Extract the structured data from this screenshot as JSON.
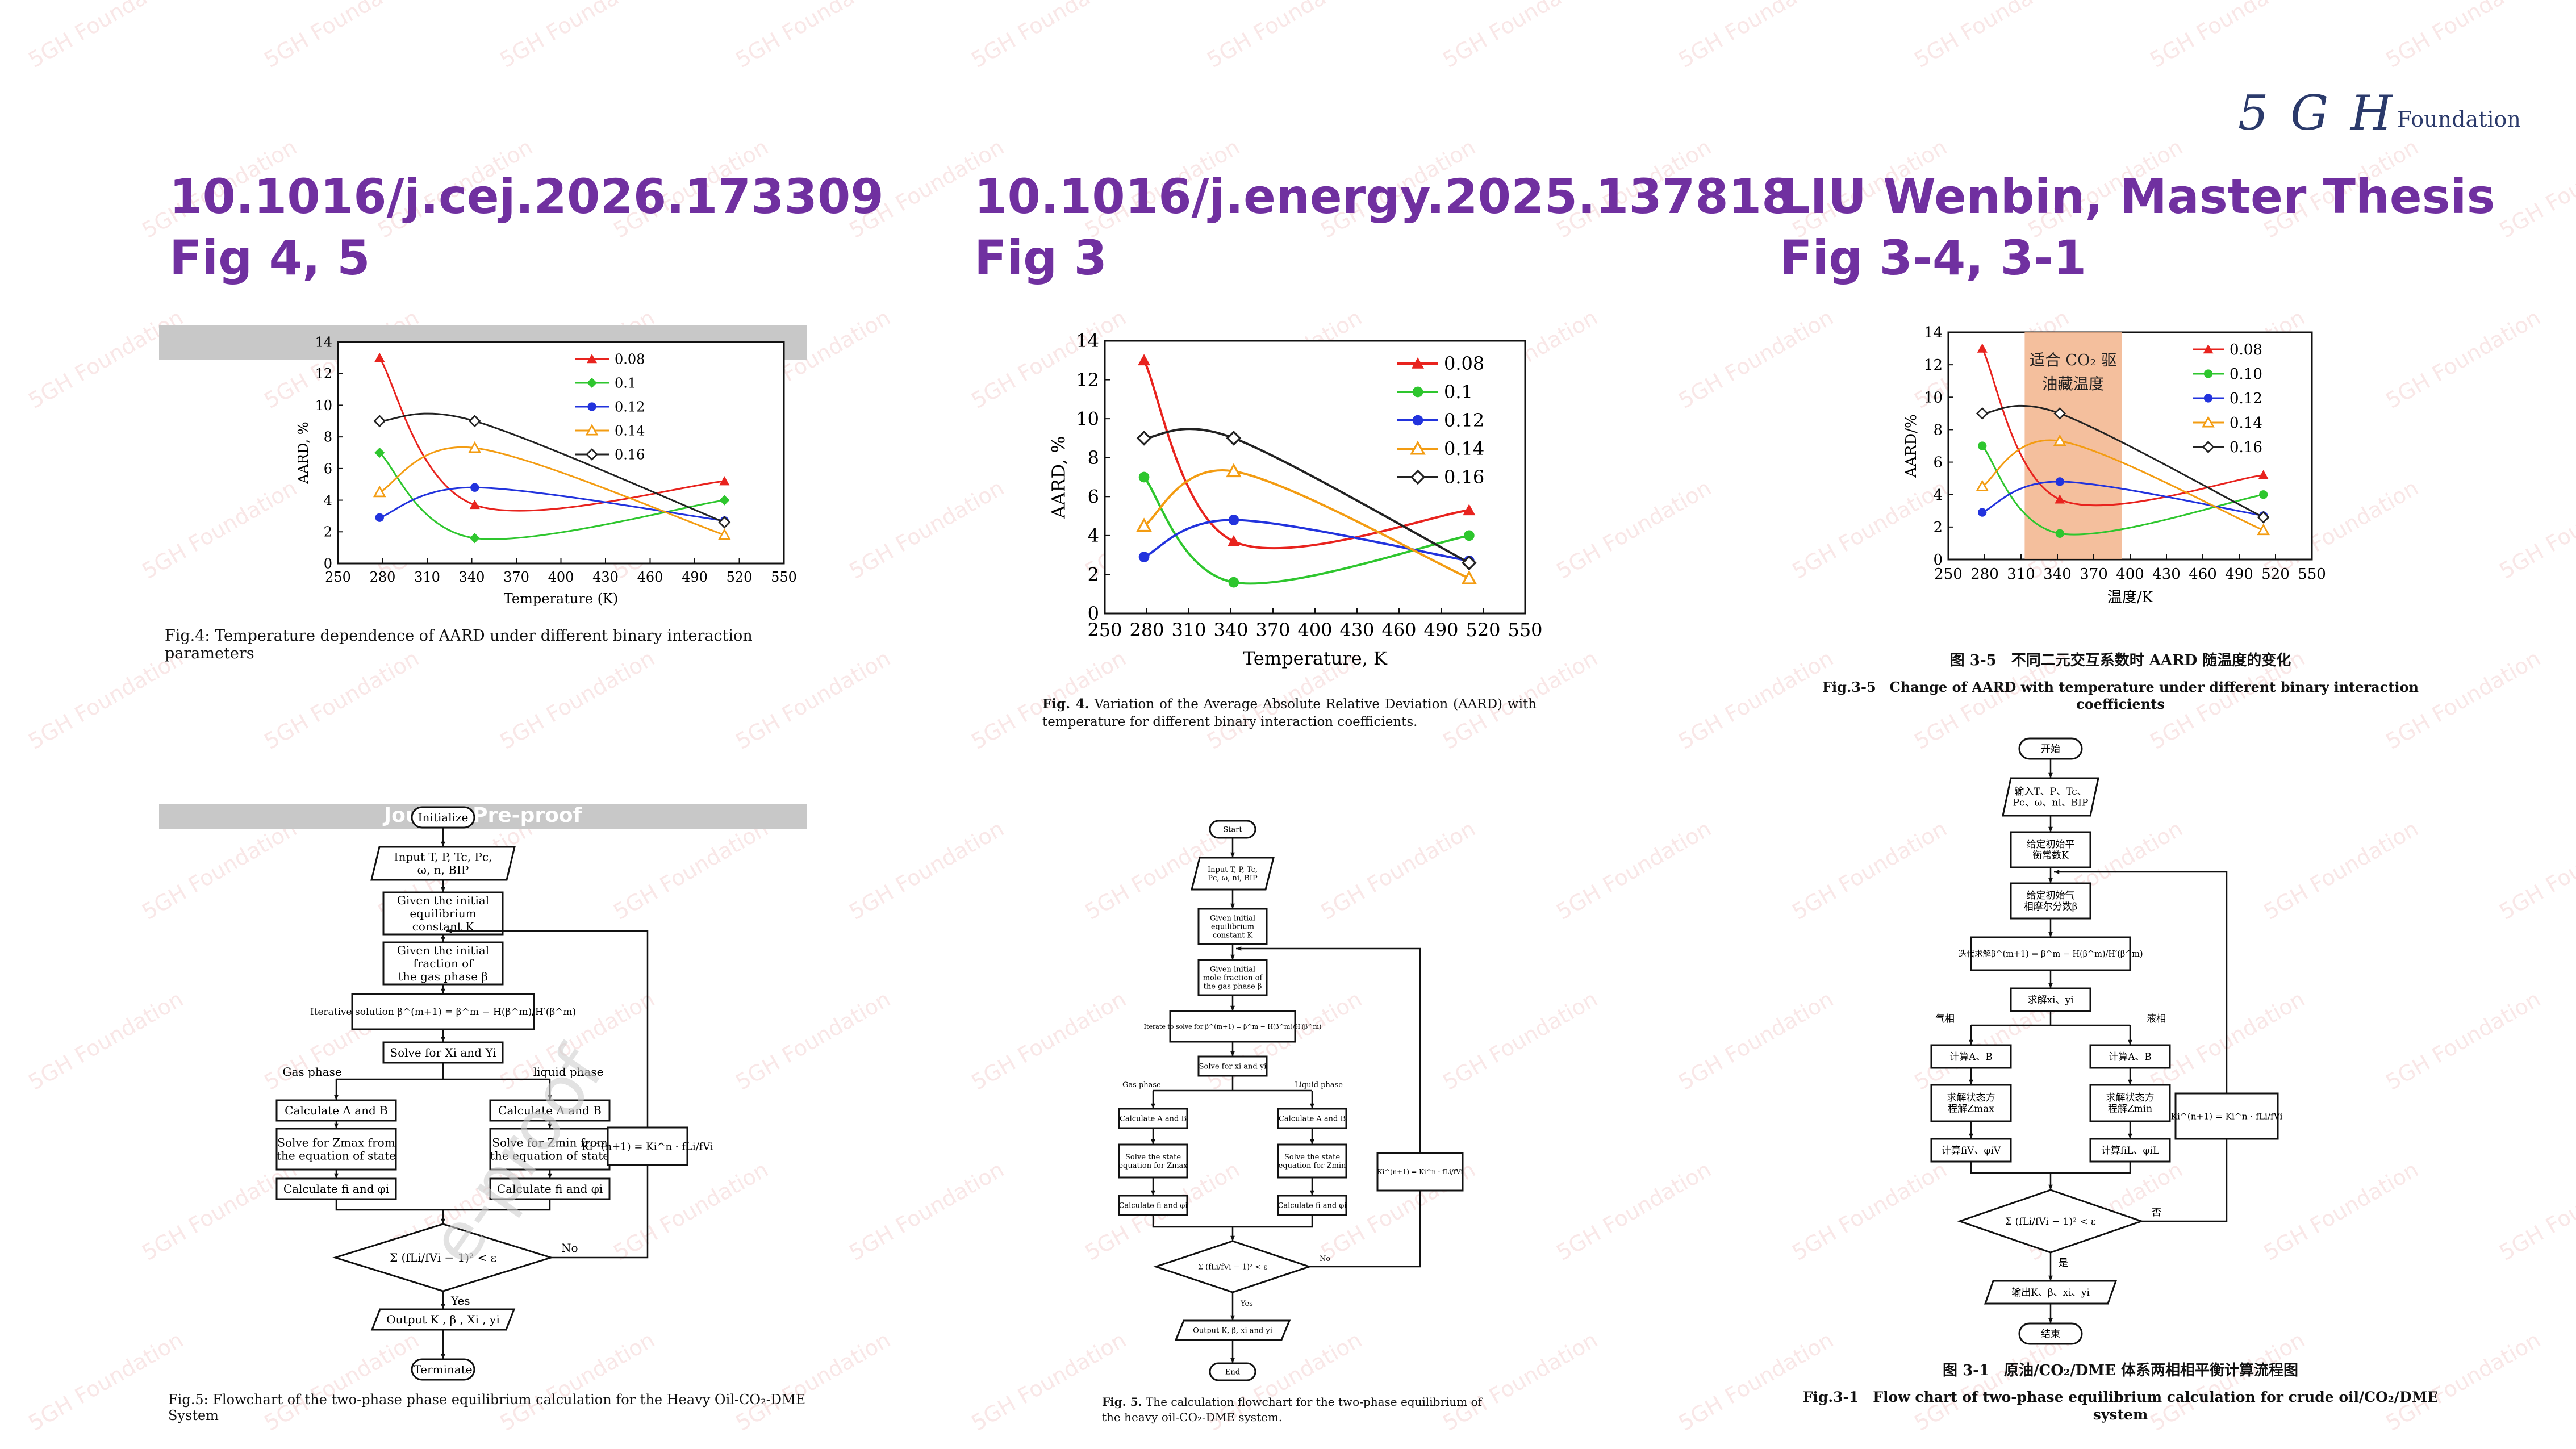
{
  "logo": {
    "mark": "5 G H",
    "text": "Foundation"
  },
  "watermark_text": "5GH Foundation",
  "columns": [
    {
      "doi": "10.1016/j.cej.2026.173309",
      "figs": "Fig 4, 5"
    },
    {
      "doi": "10.1016/j.energy.2025.137818",
      "figs": "Fig 3"
    },
    {
      "doi": "LIU Wenbin, Master Thesis",
      "figs": "Fig 3-4, 3-1"
    }
  ],
  "chart_common": {
    "x_ticks": [
      250,
      280,
      310,
      340,
      370,
      400,
      430,
      460,
      490,
      520,
      550
    ],
    "y_ticks": [
      0,
      2,
      4,
      6,
      8,
      10,
      12,
      14
    ],
    "xlim": [
      250,
      550
    ],
    "ylim": [
      0,
      14
    ]
  },
  "chart_data": [
    {
      "type": "line",
      "xlabel": "Temperature (K)",
      "ylabel": "AARD, %",
      "x": [
        278,
        342,
        510
      ],
      "series": [
        {
          "name": "0.08",
          "values": [
            13.0,
            3.7,
            5.2
          ],
          "color": "#e8231e",
          "marker": "triangle"
        },
        {
          "name": "0.1",
          "values": [
            7.0,
            1.6,
            4.0
          ],
          "color": "#2ec62e",
          "marker": "diamond"
        },
        {
          "name": "0.12",
          "values": [
            2.9,
            4.8,
            2.7
          ],
          "color": "#2233dd",
          "marker": "circle"
        },
        {
          "name": "0.14",
          "values": [
            4.5,
            7.3,
            1.8
          ],
          "color": "#f39c12",
          "marker": "open-triangle"
        },
        {
          "name": "0.16",
          "values": [
            9.0,
            9.0,
            2.6
          ],
          "color": "#222222",
          "marker": "open-diamond"
        }
      ],
      "caption": "Fig.4: Temperature dependence of AARD under different binary interaction parameters"
    },
    {
      "type": "line",
      "xlabel": "Temperature, K",
      "ylabel": "AARD, %",
      "x": [
        278,
        342,
        510
      ],
      "series": [
        {
          "name": "0.08",
          "values": [
            13.0,
            3.7,
            5.3
          ],
          "color": "#e8231e",
          "marker": "triangle"
        },
        {
          "name": "0.1",
          "values": [
            7.0,
            1.6,
            4.0
          ],
          "color": "#2ec62e",
          "marker": "circle"
        },
        {
          "name": "0.12",
          "values": [
            2.9,
            4.8,
            2.7
          ],
          "color": "#2233dd",
          "marker": "circle"
        },
        {
          "name": "0.14",
          "values": [
            4.5,
            7.3,
            1.8
          ],
          "color": "#f39c12",
          "marker": "open-triangle"
        },
        {
          "name": "0.16",
          "values": [
            9.0,
            9.0,
            2.6
          ],
          "color": "#222222",
          "marker": "open-diamond"
        }
      ],
      "caption_bold": "Fig. 4.",
      "caption": "Variation of the Average Absolute Relative Deviation (AARD) with temperature for different binary interaction coefficients."
    },
    {
      "type": "line",
      "xlabel": "温度/K",
      "ylabel": "AARD/%",
      "x": [
        278,
        342,
        510
      ],
      "series": [
        {
          "name": "0.08",
          "values": [
            13.0,
            3.7,
            5.2
          ],
          "color": "#e8231e",
          "marker": "triangle"
        },
        {
          "name": "0.10",
          "values": [
            7.0,
            1.6,
            4.0
          ],
          "color": "#2ec62e",
          "marker": "circle"
        },
        {
          "name": "0.12",
          "values": [
            2.9,
            4.8,
            2.7
          ],
          "color": "#2233dd",
          "marker": "circle"
        },
        {
          "name": "0.14",
          "values": [
            4.5,
            7.3,
            1.8
          ],
          "color": "#f39c12",
          "marker": "open-triangle"
        },
        {
          "name": "0.16",
          "values": [
            9.0,
            9.0,
            2.6
          ],
          "color": "#222222",
          "marker": "open-diamond"
        }
      ],
      "band": {
        "x0": 313,
        "x1": 393,
        "label1": "适合 CO₂ 驱",
        "label2": "油藏温度",
        "color": "#f2b48c"
      },
      "caption_cn": "图 3-5　不同二元交互系数时 AARD 随温度的变化",
      "caption": "Fig.3-5　Change of AARD with temperature under different binary interaction coefficients"
    }
  ],
  "journal_banner": "Journal Pre-proof",
  "proof_watermark": "e-proof",
  "flow1": {
    "initialize": "Initialize",
    "input1": "Input T, P, Tc, Pc,",
    "input2": "ω, n, BIP",
    "given_k1": "Given the initial",
    "given_k2": "equilibrium",
    "given_k3": "constant  K",
    "given_b1": "Given the initial",
    "given_b2": "fraction of",
    "given_b3": "the gas phase β",
    "iter": "Iterative solution β^(m+1) = β^m − H(β^m)/H′(β^m)",
    "solve_xy": "Solve for Xi and Yi",
    "gas_phase": "Gas phase",
    "liquid_phase": "liquid phase",
    "calc_ab": "Calculate A and B",
    "solve_z_max1": "Solve for Zmax from",
    "solve_z_min1": "Solve for Zmin from",
    "solve_z2": "the equation of state",
    "calc_f": "Calculate fi and φi",
    "k_update": "Ki^(n+1) = Ki^n · fLi/fVi",
    "decision": "Σ (fLi/fVi − 1)² < ε",
    "no": "No",
    "yes": "Yes",
    "output": "Output K , β , Xi , yi",
    "terminate": "Terminate",
    "caption": "Fig.5: Flowchart of the two-phase phase equilibrium calculation for the Heavy Oil-CO₂-DME System"
  },
  "flow2": {
    "start": "Start",
    "input1": "Input T, P, Tc,",
    "input2": "Pc, ω, ni, BIP",
    "given_k1": "Given initial",
    "given_k2": "equilibrium",
    "given_k3": "constant K",
    "given_b1": "Given initial",
    "given_b2": "mole fraction of",
    "given_b3": "the gas phase β",
    "iter": "Iterate to solve for β^(m+1) = β^m − H(β^m)/H′(β^m)",
    "solve_xy": "Solve for xi and yi",
    "gas_phase": "Gas phase",
    "liquid_phase": "Liquid phase",
    "calc_ab": "Calculate A and B",
    "solve_z1": "Solve the state",
    "solve_z2_max": "equation for Zmax",
    "solve_z2_min": "equation for Zmin",
    "calc_f": "Calculate fi and φi",
    "k_update": "Ki^(n+1) = Ki^n · fLi/fVi",
    "decision": "Σ (fLi/fVi − 1)² < ε",
    "no": "No",
    "yes": "Yes",
    "output": "Output K, β, xi and yi",
    "end": "End",
    "caption_bold": "Fig. 5.",
    "caption": "The calculation flowchart for the two-phase equilibrium of the heavy oil-CO₂-DME system."
  },
  "flow3": {
    "start": "开始",
    "input1": "输入T、P、Tc、",
    "input2": "Pc、ω、ni、BIP",
    "given_k1": "给定初始平",
    "given_k2": "衡常数K",
    "given_b1": "给定初始气",
    "given_b2": "相摩尔分数β",
    "iter": "迭代求解β^(m+1) = β^m − H(β^m)/H′(β^m)",
    "solve_xy": "求解xi、yi",
    "gas_phase": "气相",
    "liquid_phase": "液相",
    "calc_ab": "计算A、B",
    "solve_z1": "求解状态方",
    "solve_z_max": "程解Zmax",
    "solve_z_min": "程解Zmin",
    "calc_f_v": "计算fiV、φiV",
    "calc_f_l": "计算fiL、φiL",
    "k_update": "Ki^(n+1) = Ki^n · fLi/fVi",
    "decision": "Σ (fLi/fVi − 1)² < ε",
    "no": "否",
    "yes": "是",
    "output": "输出K、β、xi、yi",
    "end": "结束",
    "caption_cn": "图 3-1　原油/CO₂/DME 体系两相相平衡计算流程图",
    "caption": "Fig.3-1　Flow chart of two-phase equilibrium calculation for crude oil/CO₂/DME system"
  }
}
